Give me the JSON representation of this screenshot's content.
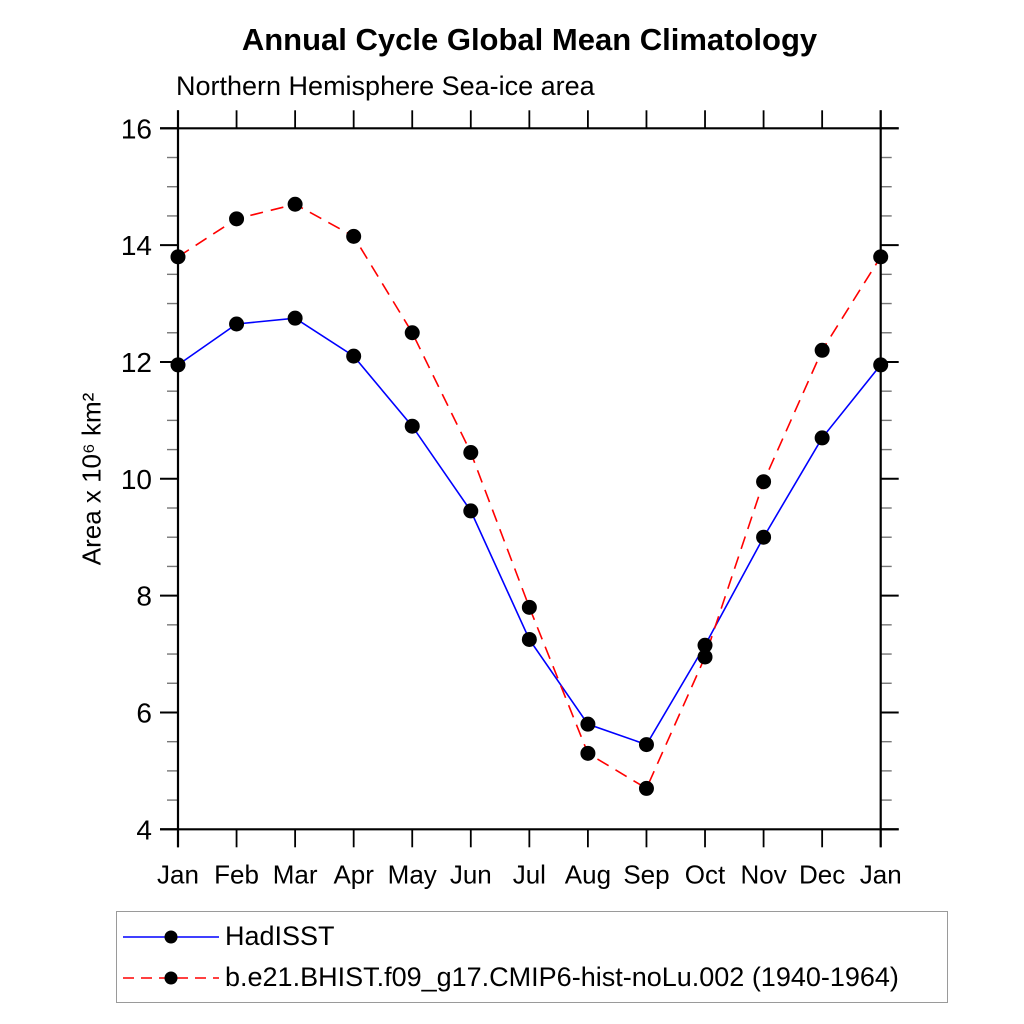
{
  "header": {
    "title": "Annual Cycle Global Mean Climatology",
    "subtitle": "Northern Hemisphere Sea-ice area"
  },
  "chart_data": {
    "type": "line",
    "title": "Annual Cycle Global Mean Climatology",
    "subtitle": "Northern Hemisphere Sea-ice area",
    "ylabel": "Area x 10⁶ km²",
    "xlabel": "",
    "categories": [
      "Jan",
      "Feb",
      "Mar",
      "Apr",
      "May",
      "Jun",
      "Jul",
      "Aug",
      "Sep",
      "Oct",
      "Nov",
      "Dec",
      "Jan"
    ],
    "series": [
      {
        "name": "HadISST",
        "color": "#0000ff",
        "line_style": "solid",
        "marker": "circle",
        "values": [
          11.95,
          12.65,
          12.75,
          12.1,
          10.9,
          9.45,
          7.25,
          5.8,
          5.45,
          7.15,
          9.0,
          10.7,
          11.95
        ]
      },
      {
        "name": "b.e21.BHIST.f09_g17.CMIP6-hist-noLu.002 (1940-1964)",
        "color": "#ff0000",
        "line_style": "dashed",
        "marker": "circle",
        "values": [
          13.8,
          14.45,
          14.7,
          14.15,
          12.5,
          10.45,
          7.8,
          5.3,
          4.7,
          6.95,
          9.95,
          12.2,
          13.8
        ]
      }
    ],
    "marker_color": "#000000",
    "ylim": [
      4,
      16
    ],
    "y_major_ticks": [
      4,
      6,
      8,
      10,
      12,
      14,
      16
    ],
    "y_minor_step": 0.5,
    "grid": false,
    "legend_position": "bottom"
  },
  "style": {
    "axis_color": "#000000",
    "minor_tick_color": "#777777",
    "legend_border_color": "#9a9a9a"
  }
}
